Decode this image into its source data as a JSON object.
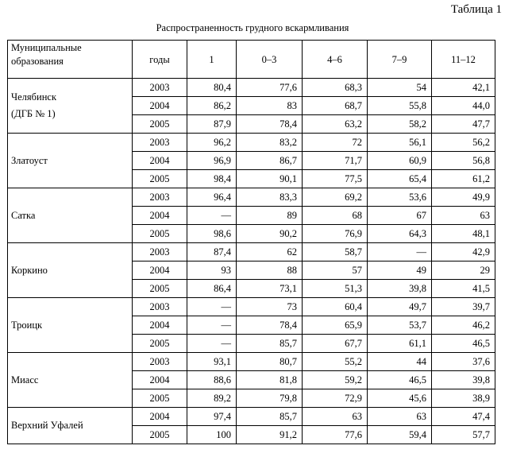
{
  "caption": "Таблица 1",
  "title": "Распространенность грудного вскармливания",
  "header": {
    "municipality_lines": [
      "Муниципальные",
      "образования"
    ],
    "year": "годы",
    "ages": [
      "1",
      "0–3",
      "4–6",
      "7–9",
      "11–12"
    ]
  },
  "groups": [
    {
      "name_lines": [
        "Челябинск",
        "(ДГБ № 1)"
      ],
      "rows": [
        {
          "year": "2003",
          "v": [
            "80,4",
            "77,6",
            "68,3",
            "54",
            "42,1"
          ]
        },
        {
          "year": "2004",
          "v": [
            "86,2",
            "83",
            "68,7",
            "55,8",
            "44,0"
          ]
        },
        {
          "year": "2005",
          "v": [
            "87,9",
            "78,4",
            "63,2",
            "58,2",
            "47,7"
          ]
        }
      ]
    },
    {
      "name_lines": [
        "Златоуст"
      ],
      "rows": [
        {
          "year": "2003",
          "v": [
            "96,2",
            "83,2",
            "72",
            "56,1",
            "56,2"
          ]
        },
        {
          "year": "2004",
          "v": [
            "96,9",
            "86,7",
            "71,7",
            "60,9",
            "56,8"
          ]
        },
        {
          "year": "2005",
          "v": [
            "98,4",
            "90,1",
            "77,5",
            "65,4",
            "61,2"
          ]
        }
      ]
    },
    {
      "name_lines": [
        "Сатка"
      ],
      "rows": [
        {
          "year": "2003",
          "v": [
            "96,4",
            "83,3",
            "69,2",
            "53,6",
            "49,9"
          ]
        },
        {
          "year": "2004",
          "v": [
            "—",
            "89",
            "68",
            "67",
            "63"
          ]
        },
        {
          "year": "2005",
          "v": [
            "98,6",
            "90,2",
            "76,9",
            "64,3",
            "48,1"
          ]
        }
      ]
    },
    {
      "name_lines": [
        "Коркино"
      ],
      "rows": [
        {
          "year": "2003",
          "v": [
            "87,4",
            "62",
            "58,7",
            "—",
            "42,9"
          ]
        },
        {
          "year": "2004",
          "v": [
            "93",
            "88",
            "57",
            "49",
            "29"
          ]
        },
        {
          "year": "2005",
          "v": [
            "86,4",
            "73,1",
            "51,3",
            "39,8",
            "41,5"
          ]
        }
      ]
    },
    {
      "name_lines": [
        "Троицк"
      ],
      "rows": [
        {
          "year": "2003",
          "v": [
            "—",
            "73",
            "60,4",
            "49,7",
            "39,7"
          ]
        },
        {
          "year": "2004",
          "v": [
            "—",
            "78,4",
            "65,9",
            "53,7",
            "46,2"
          ]
        },
        {
          "year": "2005",
          "v": [
            "—",
            "85,7",
            "67,7",
            "61,1",
            "46,5"
          ]
        }
      ]
    },
    {
      "name_lines": [
        "Миасс"
      ],
      "rows": [
        {
          "year": "2003",
          "v": [
            "93,1",
            "80,7",
            "55,2",
            "44",
            "37,6"
          ]
        },
        {
          "year": "2004",
          "v": [
            "88,6",
            "81,8",
            "59,2",
            "46,5",
            "39,8"
          ]
        },
        {
          "year": "2005",
          "v": [
            "89,2",
            "79,8",
            "72,9",
            "45,6",
            "38,9"
          ]
        }
      ]
    },
    {
      "name_lines": [
        "Верхний Уфалей"
      ],
      "rows": [
        {
          "year": "2004",
          "v": [
            "97,4",
            "85,7",
            "63",
            "63",
            "47,4"
          ]
        },
        {
          "year": "2005",
          "v": [
            "100",
            "91,2",
            "77,6",
            "59,4",
            "57,7"
          ]
        }
      ]
    }
  ]
}
